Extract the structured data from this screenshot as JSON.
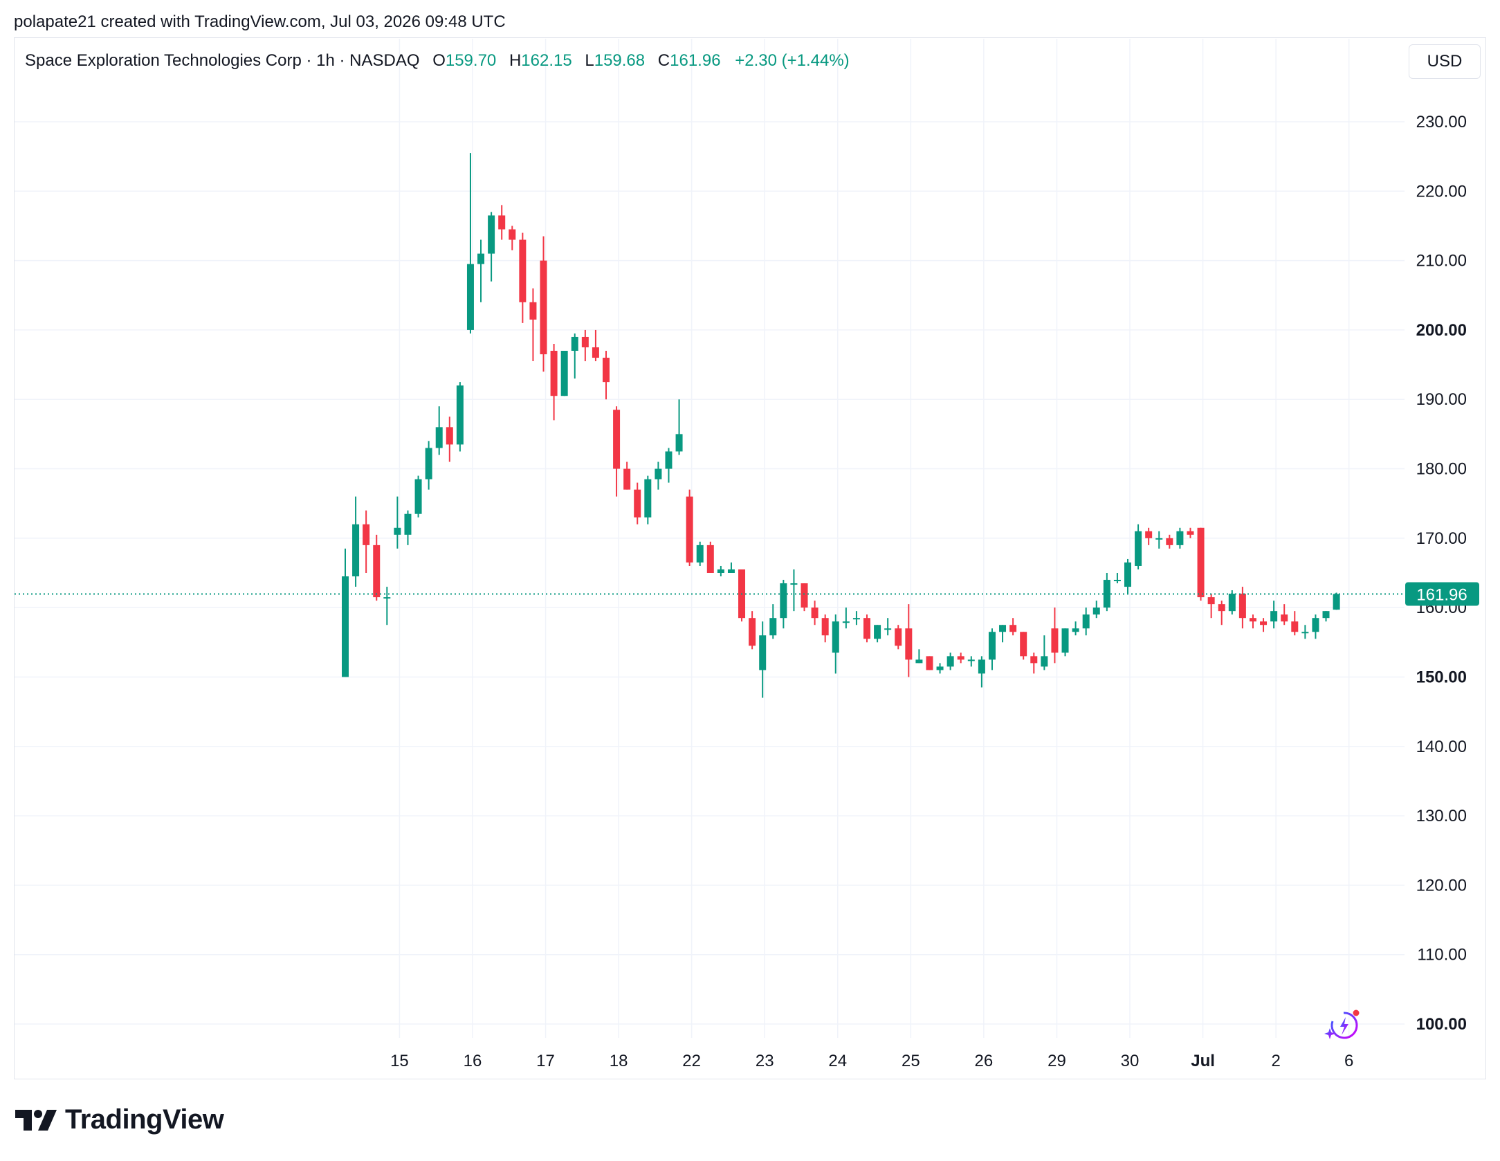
{
  "header": {
    "credit": "polapate21 created with TradingView.com, Jul 03, 2026 09:48 UTC"
  },
  "legend": {
    "symbol": "Space Exploration Technologies Corp · 1h · NASDAQ",
    "o_label": "O",
    "o_value": "159.70",
    "h_label": "H",
    "h_value": "162.15",
    "l_label": "L",
    "l_value": "159.68",
    "c_label": "C",
    "c_value": "161.96",
    "change": "+2.30 (+1.44%)"
  },
  "currency_button": {
    "label": "USD"
  },
  "brand": {
    "name": "TradingView",
    "logo_icon": "tradingview-logo-icon"
  },
  "colors": {
    "up": "#089981",
    "down": "#f23645",
    "grid": "#f0f3fa",
    "text": "#131722"
  },
  "chart_data": {
    "type": "candlestick",
    "ylim": [
      97,
      236
    ],
    "y_ticks": [
      {
        "value": 230,
        "label": "230.00",
        "bold": false
      },
      {
        "value": 220,
        "label": "220.00",
        "bold": false
      },
      {
        "value": 210,
        "label": "210.00",
        "bold": false
      },
      {
        "value": 200,
        "label": "200.00",
        "bold": true
      },
      {
        "value": 190,
        "label": "190.00",
        "bold": false
      },
      {
        "value": 180,
        "label": "180.00",
        "bold": false
      },
      {
        "value": 170,
        "label": "170.00",
        "bold": false
      },
      {
        "value": 160,
        "label": "160.00",
        "bold": false
      },
      {
        "value": 150,
        "label": "150.00",
        "bold": true
      },
      {
        "value": 140,
        "label": "140.00",
        "bold": false
      },
      {
        "value": 130,
        "label": "130.00",
        "bold": false
      },
      {
        "value": 120,
        "label": "120.00",
        "bold": false
      },
      {
        "value": 110,
        "label": "110.00",
        "bold": false
      },
      {
        "value": 100,
        "label": "100.00",
        "bold": true
      }
    ],
    "x_ticks": [
      {
        "bar": 5.2,
        "label": "15",
        "bold": false
      },
      {
        "bar": 12.2,
        "label": "16",
        "bold": false
      },
      {
        "bar": 19.2,
        "label": "17",
        "bold": false
      },
      {
        "bar": 26.2,
        "label": "18",
        "bold": false
      },
      {
        "bar": 33.2,
        "label": "22",
        "bold": false
      },
      {
        "bar": 40.2,
        "label": "23",
        "bold": false
      },
      {
        "bar": 47.2,
        "label": "24",
        "bold": false
      },
      {
        "bar": 54.2,
        "label": "25",
        "bold": false
      },
      {
        "bar": 61.2,
        "label": "26",
        "bold": false
      },
      {
        "bar": 68.2,
        "label": "29",
        "bold": false
      },
      {
        "bar": 75.2,
        "label": "30",
        "bold": false
      },
      {
        "bar": 82.2,
        "label": "Jul",
        "bold": true
      },
      {
        "bar": 89.2,
        "label": "2",
        "bold": false
      },
      {
        "bar": 96.2,
        "label": "6",
        "bold": false
      }
    ],
    "last_price": {
      "value": 161.96,
      "label": "161.96"
    },
    "candles": [
      {
        "o": 150,
        "h": 168.5,
        "l": 150,
        "c": 164.5
      },
      {
        "o": 164.5,
        "h": 176,
        "l": 163,
        "c": 172
      },
      {
        "o": 172,
        "h": 174,
        "l": 165,
        "c": 169
      },
      {
        "o": 169,
        "h": 170.5,
        "l": 161,
        "c": 161.5
      },
      {
        "o": 161.5,
        "h": 163,
        "l": 157.5,
        "c": 161.5
      },
      {
        "o": 170.5,
        "h": 176,
        "l": 168.5,
        "c": 171.5
      },
      {
        "o": 170.5,
        "h": 174,
        "l": 169,
        "c": 173.5
      },
      {
        "o": 173.5,
        "h": 179,
        "l": 173,
        "c": 178.5
      },
      {
        "o": 178.5,
        "h": 184,
        "l": 177,
        "c": 183
      },
      {
        "o": 183,
        "h": 189,
        "l": 182,
        "c": 186
      },
      {
        "o": 186,
        "h": 187.5,
        "l": 181,
        "c": 183.5
      },
      {
        "o": 183.5,
        "h": 192.5,
        "l": 182.5,
        "c": 192
      },
      {
        "o": 200,
        "h": 225.5,
        "l": 199.5,
        "c": 209.5
      },
      {
        "o": 209.5,
        "h": 213,
        "l": 204,
        "c": 211
      },
      {
        "o": 211,
        "h": 217,
        "l": 207,
        "c": 216.5
      },
      {
        "o": 216.5,
        "h": 218,
        "l": 213,
        "c": 214.5
      },
      {
        "o": 214.5,
        "h": 215,
        "l": 211.5,
        "c": 213
      },
      {
        "o": 213,
        "h": 214,
        "l": 201,
        "c": 204
      },
      {
        "o": 204,
        "h": 206,
        "l": 195.5,
        "c": 201.5
      },
      {
        "o": 210,
        "h": 213.5,
        "l": 194,
        "c": 196.5
      },
      {
        "o": 197,
        "h": 198,
        "l": 187,
        "c": 190.5
      },
      {
        "o": 190.5,
        "h": 197,
        "l": 190.5,
        "c": 197
      },
      {
        "o": 197,
        "h": 199.5,
        "l": 193,
        "c": 199
      },
      {
        "o": 199,
        "h": 200,
        "l": 195.5,
        "c": 197.5
      },
      {
        "o": 197.5,
        "h": 200,
        "l": 195.5,
        "c": 196
      },
      {
        "o": 196,
        "h": 197,
        "l": 190,
        "c": 192.5
      },
      {
        "o": 188.5,
        "h": 189,
        "l": 176,
        "c": 180
      },
      {
        "o": 180,
        "h": 181,
        "l": 177,
        "c": 177
      },
      {
        "o": 177,
        "h": 178,
        "l": 172,
        "c": 173
      },
      {
        "o": 173,
        "h": 179,
        "l": 172,
        "c": 178.5
      },
      {
        "o": 178.5,
        "h": 181,
        "l": 177,
        "c": 180
      },
      {
        "o": 180,
        "h": 183,
        "l": 178,
        "c": 182.5
      },
      {
        "o": 182.5,
        "h": 190,
        "l": 182,
        "c": 185
      },
      {
        "o": 176,
        "h": 177,
        "l": 166,
        "c": 166.5
      },
      {
        "o": 166.5,
        "h": 169.5,
        "l": 166,
        "c": 169
      },
      {
        "o": 169,
        "h": 169.5,
        "l": 165,
        "c": 165
      },
      {
        "o": 165,
        "h": 166,
        "l": 164.5,
        "c": 165.5
      },
      {
        "o": 165,
        "h": 166.5,
        "l": 165,
        "c": 165.5
      },
      {
        "o": 165.5,
        "h": 165.5,
        "l": 158,
        "c": 158.5
      },
      {
        "o": 158.5,
        "h": 159.5,
        "l": 154,
        "c": 154.5
      },
      {
        "o": 151,
        "h": 158,
        "l": 147,
        "c": 156
      },
      {
        "o": 156,
        "h": 160.5,
        "l": 155.5,
        "c": 158.5
      },
      {
        "o": 158.5,
        "h": 164,
        "l": 157,
        "c": 163.5
      },
      {
        "o": 163.5,
        "h": 165.5,
        "l": 159.5,
        "c": 163.5
      },
      {
        "o": 163.5,
        "h": 163.5,
        "l": 159.5,
        "c": 160
      },
      {
        "o": 160,
        "h": 161,
        "l": 157.5,
        "c": 158.5
      },
      {
        "o": 158.5,
        "h": 159,
        "l": 155,
        "c": 156
      },
      {
        "o": 153.5,
        "h": 159,
        "l": 150.5,
        "c": 158
      },
      {
        "o": 158,
        "h": 160,
        "l": 157,
        "c": 158
      },
      {
        "o": 158.5,
        "h": 159.5,
        "l": 157.5,
        "c": 158.5
      },
      {
        "o": 158.5,
        "h": 159,
        "l": 155,
        "c": 155.5
      },
      {
        "o": 155.5,
        "h": 157.5,
        "l": 155,
        "c": 157.5
      },
      {
        "o": 157,
        "h": 158.5,
        "l": 156,
        "c": 157
      },
      {
        "o": 157,
        "h": 157.5,
        "l": 154,
        "c": 154.5
      },
      {
        "o": 157,
        "h": 160.5,
        "l": 150,
        "c": 152.5
      },
      {
        "o": 152,
        "h": 154,
        "l": 152,
        "c": 152.5
      },
      {
        "o": 153,
        "h": 153,
        "l": 151,
        "c": 151
      },
      {
        "o": 151,
        "h": 152,
        "l": 150.5,
        "c": 151.5
      },
      {
        "o": 151.5,
        "h": 153.5,
        "l": 151,
        "c": 153
      },
      {
        "o": 153,
        "h": 153.5,
        "l": 152,
        "c": 152.5
      },
      {
        "o": 152.5,
        "h": 153,
        "l": 151.5,
        "c": 152.5
      },
      {
        "o": 150.5,
        "h": 153,
        "l": 148.5,
        "c": 152.5
      },
      {
        "o": 152.5,
        "h": 157,
        "l": 151,
        "c": 156.5
      },
      {
        "o": 156.5,
        "h": 157.5,
        "l": 155,
        "c": 157.5
      },
      {
        "o": 157.5,
        "h": 158.5,
        "l": 156,
        "c": 156.5
      },
      {
        "o": 156.5,
        "h": 156.5,
        "l": 152.5,
        "c": 153
      },
      {
        "o": 153,
        "h": 153.5,
        "l": 150.5,
        "c": 152
      },
      {
        "o": 151.5,
        "h": 156,
        "l": 151,
        "c": 153
      },
      {
        "o": 157,
        "h": 160,
        "l": 152,
        "c": 153.5
      },
      {
        "o": 153.5,
        "h": 157,
        "l": 153,
        "c": 157
      },
      {
        "o": 156.5,
        "h": 158,
        "l": 156,
        "c": 157
      },
      {
        "o": 157,
        "h": 160,
        "l": 156,
        "c": 159
      },
      {
        "o": 159,
        "h": 161,
        "l": 158.5,
        "c": 160
      },
      {
        "o": 160,
        "h": 165,
        "l": 159.5,
        "c": 164
      },
      {
        "o": 164,
        "h": 165,
        "l": 163.5,
        "c": 164
      },
      {
        "o": 163,
        "h": 167,
        "l": 162,
        "c": 166.5
      },
      {
        "o": 166,
        "h": 172,
        "l": 165.5,
        "c": 171
      },
      {
        "o": 171,
        "h": 171.5,
        "l": 169,
        "c": 170
      },
      {
        "o": 170,
        "h": 171,
        "l": 168.5,
        "c": 170
      },
      {
        "o": 170,
        "h": 170.5,
        "l": 168.5,
        "c": 169
      },
      {
        "o": 169,
        "h": 171.5,
        "l": 168.5,
        "c": 171
      },
      {
        "o": 171,
        "h": 171.5,
        "l": 170,
        "c": 170.5
      },
      {
        "o": 171.5,
        "h": 171.5,
        "l": 161,
        "c": 161.5
      },
      {
        "o": 161.5,
        "h": 162,
        "l": 158.5,
        "c": 160.5
      },
      {
        "o": 160.5,
        "h": 161,
        "l": 157.5,
        "c": 159.5
      },
      {
        "o": 159.5,
        "h": 162.5,
        "l": 159,
        "c": 162
      },
      {
        "o": 162,
        "h": 163,
        "l": 157,
        "c": 158.5
      },
      {
        "o": 158.5,
        "h": 159,
        "l": 157,
        "c": 158
      },
      {
        "o": 158,
        "h": 158.5,
        "l": 156.5,
        "c": 157.5
      },
      {
        "o": 158,
        "h": 161,
        "l": 157,
        "c": 159.5
      },
      {
        "o": 159,
        "h": 160.5,
        "l": 157.5,
        "c": 158
      },
      {
        "o": 158,
        "h": 159.5,
        "l": 156,
        "c": 156.5
      },
      {
        "o": 156.5,
        "h": 157.5,
        "l": 155.5,
        "c": 156.5
      },
      {
        "o": 156.5,
        "h": 159,
        "l": 155.5,
        "c": 158.5
      },
      {
        "o": 158.5,
        "h": 159.5,
        "l": 158,
        "c": 159.5
      },
      {
        "o": 159.7,
        "h": 162.15,
        "l": 159.68,
        "c": 161.96
      }
    ]
  }
}
